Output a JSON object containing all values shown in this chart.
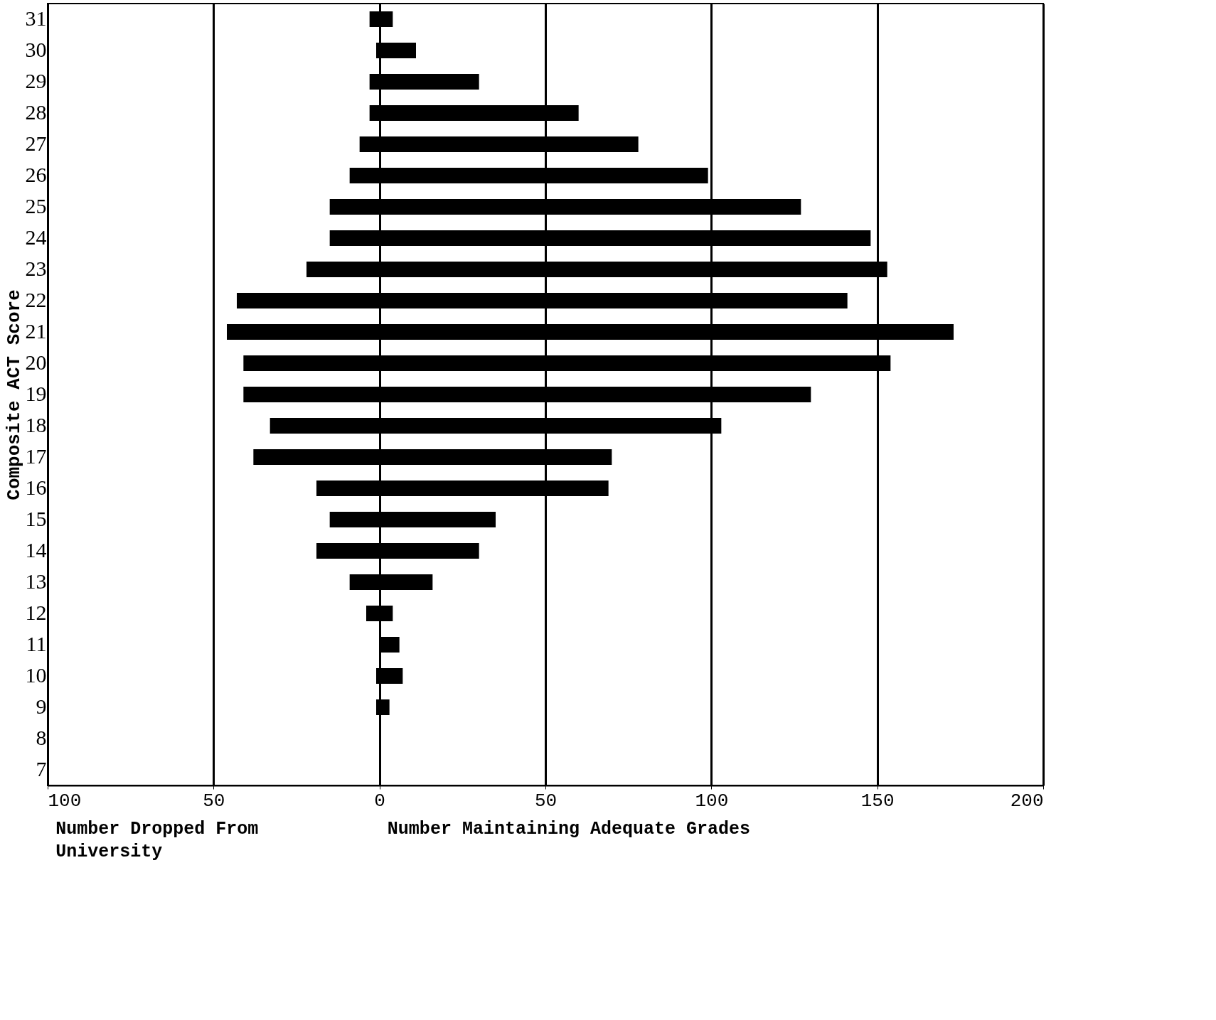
{
  "chart_data": {
    "type": "bar",
    "orientation": "horizontal",
    "ylabel": "Composite ACT Score",
    "categories": [
      "31",
      "30",
      "29",
      "28",
      "27",
      "26",
      "25",
      "24",
      "23",
      "22",
      "21",
      "20",
      "19",
      "18",
      "17",
      "16",
      "15",
      "14",
      "13",
      "12",
      "11",
      "10",
      "9",
      "8",
      "7"
    ],
    "series": [
      {
        "color": "#000000",
        "values": [
          -3,
          -1,
          -3,
          -3,
          -6,
          -9,
          -15,
          -15,
          -22,
          -43,
          -46,
          -41,
          -41,
          -33,
          -38,
          -19,
          -15,
          -19,
          -9,
          -4,
          0,
          -1,
          -1,
          null,
          null
        ]
      },
      {
        "color": "#000000",
        "values": [
          4,
          11,
          30,
          60,
          78,
          99,
          127,
          148,
          153,
          141,
          173,
          154,
          130,
          103,
          70,
          69,
          35,
          30,
          16,
          4,
          6,
          7,
          3,
          null,
          null
        ]
      }
    ],
    "xlim": [
      -100,
      200
    ],
    "xticks": [
      {
        "value": -100,
        "label": "100"
      },
      {
        "value": -50,
        "label": "50"
      },
      0,
      50,
      100,
      150,
      200
    ],
    "grid": "x",
    "stacked": true,
    "annotations": [
      "Number Dropped From University",
      "Number Maintaining Adequate Grades"
    ]
  }
}
